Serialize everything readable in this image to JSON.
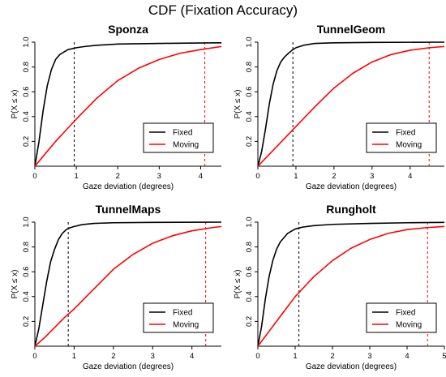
{
  "figure_title": "CDF (Fixation Accuracy)",
  "colors": {
    "fixed": "#000000",
    "moving": "#ff0000"
  },
  "chart_data": [
    {
      "type": "line",
      "title": "Sponza",
      "xlabel": "Gaze deviation (degrees)",
      "ylabel": "P(X ≤ x)",
      "xlim": [
        0,
        4.5
      ],
      "ylim": [
        0,
        1.0
      ],
      "xticks": [
        0,
        1,
        2,
        3,
        4
      ],
      "yticks": [
        0.2,
        0.4,
        0.6,
        0.8,
        1.0
      ],
      "legend_position": "bottom-right",
      "series": [
        {
          "name": "Fixed",
          "color": "#000000",
          "x": [
            0,
            0.1,
            0.2,
            0.3,
            0.4,
            0.5,
            0.6,
            0.7,
            0.8,
            1.0,
            1.2,
            1.5,
            2.0,
            3.0,
            4.5
          ],
          "y": [
            0,
            0.2,
            0.45,
            0.65,
            0.78,
            0.86,
            0.9,
            0.92,
            0.94,
            0.955,
            0.965,
            0.975,
            0.985,
            0.99,
            0.995
          ]
        },
        {
          "name": "Moving",
          "color": "#ff0000",
          "x": [
            0,
            0.25,
            0.5,
            0.75,
            1.0,
            1.5,
            2.0,
            2.5,
            3.0,
            3.5,
            4.0,
            4.5
          ],
          "y": [
            0,
            0.1,
            0.2,
            0.29,
            0.38,
            0.55,
            0.69,
            0.79,
            0.86,
            0.91,
            0.94,
            0.965
          ]
        }
      ],
      "vlines": [
        {
          "x": 0.95,
          "color": "#000000"
        },
        {
          "x": 4.1,
          "color": "#ff0000"
        }
      ]
    },
    {
      "type": "line",
      "title": "TunnelGeom",
      "xlabel": "Gaze deviation (degrees)",
      "ylabel": "P(X ≤ x)",
      "xlim": [
        0,
        4.9
      ],
      "ylim": [
        0,
        1.0
      ],
      "xticks": [
        0,
        1,
        2,
        3,
        4
      ],
      "yticks": [
        0.2,
        0.4,
        0.6,
        0.8,
        1.0
      ],
      "legend_position": "bottom-right",
      "series": [
        {
          "name": "Fixed",
          "color": "#000000",
          "x": [
            0,
            0.1,
            0.2,
            0.3,
            0.4,
            0.5,
            0.6,
            0.7,
            0.8,
            0.9,
            1.0,
            1.2,
            1.5,
            2.0,
            3.0,
            4.9
          ],
          "y": [
            0,
            0.12,
            0.3,
            0.5,
            0.66,
            0.77,
            0.84,
            0.88,
            0.91,
            0.935,
            0.955,
            0.975,
            0.99,
            0.995,
            0.998,
            1.0
          ]
        },
        {
          "name": "Moving",
          "color": "#ff0000",
          "x": [
            0,
            0.25,
            0.5,
            0.75,
            1.0,
            1.5,
            2.0,
            2.5,
            3.0,
            3.5,
            4.0,
            4.5,
            4.9
          ],
          "y": [
            0,
            0.08,
            0.16,
            0.24,
            0.32,
            0.48,
            0.63,
            0.75,
            0.84,
            0.9,
            0.935,
            0.955,
            0.965
          ]
        }
      ],
      "vlines": [
        {
          "x": 0.92,
          "color": "#000000"
        },
        {
          "x": 4.5,
          "color": "#ff0000"
        }
      ]
    },
    {
      "type": "line",
      "title": "TunnelMaps",
      "xlabel": "Gaze deviation (degrees)",
      "ylabel": "P(X ≤ x)",
      "xlim": [
        0,
        4.75
      ],
      "ylim": [
        0,
        1.0
      ],
      "xticks": [
        0,
        1,
        2,
        3,
        4
      ],
      "yticks": [
        0.2,
        0.4,
        0.6,
        0.8,
        1.0
      ],
      "legend_position": "bottom-right",
      "series": [
        {
          "name": "Fixed",
          "color": "#000000",
          "x": [
            0,
            0.1,
            0.2,
            0.3,
            0.4,
            0.5,
            0.6,
            0.7,
            0.8,
            0.9,
            1.0,
            1.2,
            1.5,
            2.0,
            3.0,
            4.75
          ],
          "y": [
            0,
            0.14,
            0.33,
            0.52,
            0.68,
            0.78,
            0.86,
            0.91,
            0.94,
            0.955,
            0.965,
            0.98,
            0.99,
            0.995,
            0.998,
            1.0
          ]
        },
        {
          "name": "Moving",
          "color": "#ff0000",
          "x": [
            0,
            0.25,
            0.5,
            0.75,
            1.0,
            1.5,
            2.0,
            2.5,
            3.0,
            3.5,
            4.0,
            4.5,
            4.75
          ],
          "y": [
            0,
            0.07,
            0.15,
            0.23,
            0.3,
            0.46,
            0.62,
            0.74,
            0.83,
            0.89,
            0.93,
            0.955,
            0.965
          ]
        }
      ],
      "vlines": [
        {
          "x": 0.85,
          "color": "#000000"
        },
        {
          "x": 4.35,
          "color": "#ff0000"
        }
      ]
    },
    {
      "type": "line",
      "title": "Rungholt",
      "xlabel": "Gaze deviation (degrees)",
      "ylabel": "P(X ≤ x)",
      "xlim": [
        0,
        5.0
      ],
      "ylim": [
        0,
        1.0
      ],
      "xticks": [
        0,
        1,
        2,
        3,
        4,
        5
      ],
      "yticks": [
        0.2,
        0.4,
        0.6,
        0.8,
        1.0
      ],
      "legend_position": "bottom-right",
      "series": [
        {
          "name": "Fixed",
          "color": "#000000",
          "x": [
            0,
            0.1,
            0.2,
            0.3,
            0.4,
            0.5,
            0.6,
            0.8,
            1.0,
            1.2,
            1.5,
            2.0,
            3.0,
            4.0,
            5.0
          ],
          "y": [
            0,
            0.16,
            0.38,
            0.56,
            0.69,
            0.78,
            0.84,
            0.91,
            0.945,
            0.96,
            0.972,
            0.982,
            0.99,
            0.995,
            0.998
          ]
        },
        {
          "name": "Moving",
          "color": "#ff0000",
          "x": [
            0,
            0.25,
            0.5,
            0.75,
            1.0,
            1.5,
            2.0,
            2.5,
            3.0,
            3.5,
            4.0,
            4.5,
            5.0
          ],
          "y": [
            0,
            0.1,
            0.2,
            0.3,
            0.4,
            0.56,
            0.69,
            0.79,
            0.86,
            0.91,
            0.94,
            0.955,
            0.965
          ]
        }
      ],
      "vlines": [
        {
          "x": 1.1,
          "color": "#000000"
        },
        {
          "x": 4.55,
          "color": "#ff0000"
        }
      ]
    }
  ]
}
